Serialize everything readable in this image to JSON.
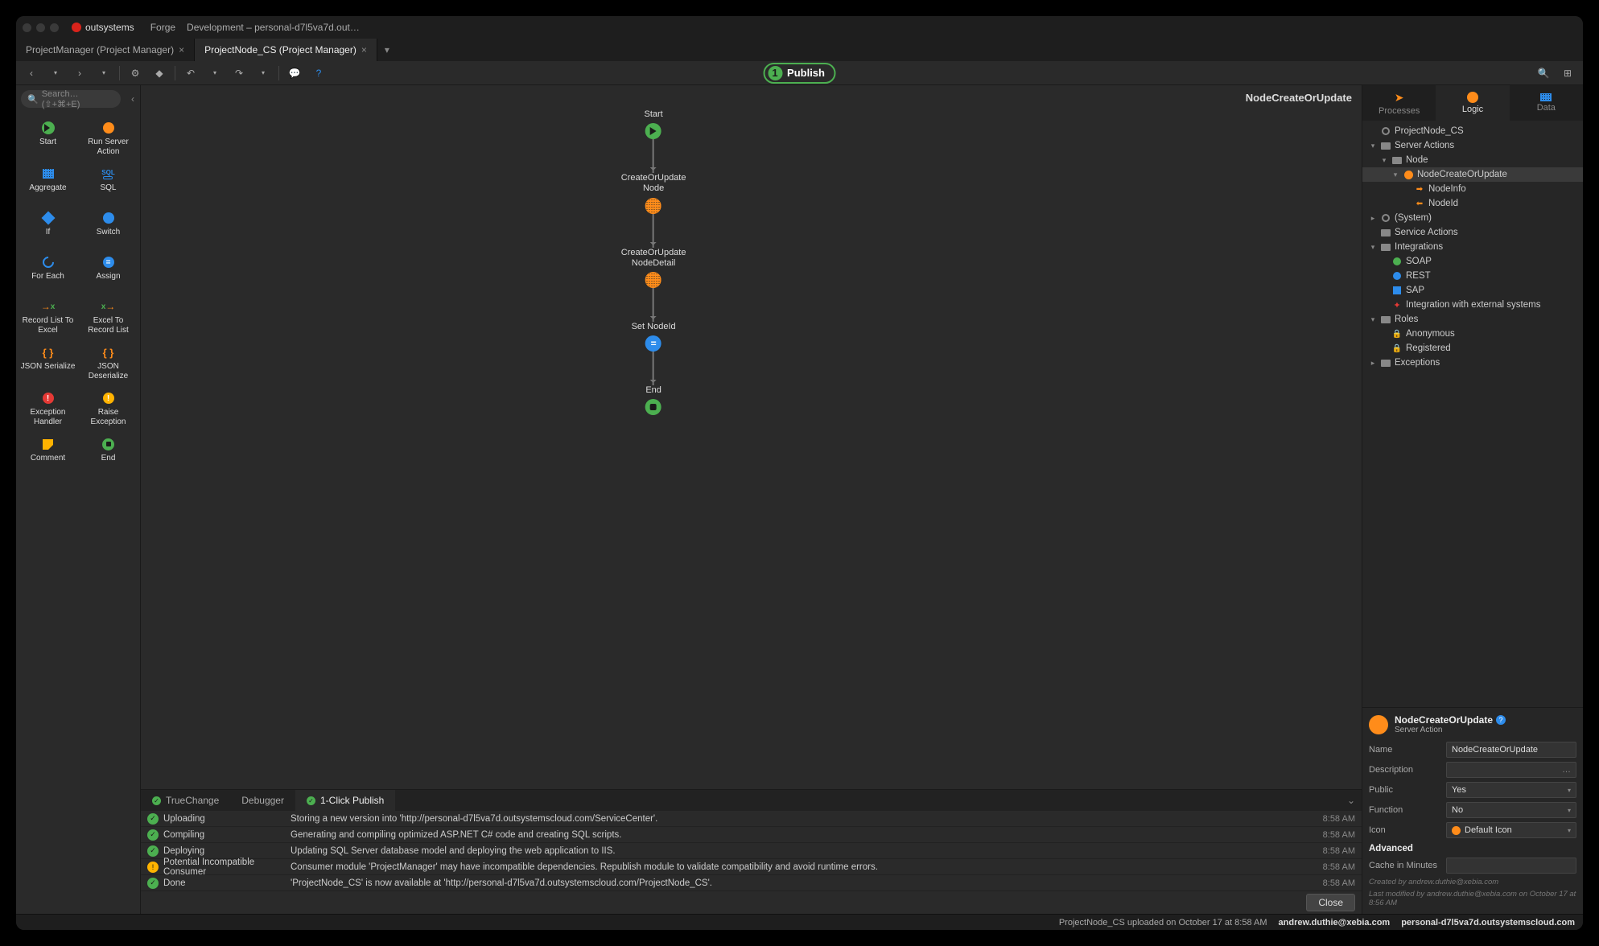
{
  "colors": {
    "bg": "#2a2a2a",
    "panel": "#262626",
    "orange": "#ff8c1a",
    "green": "#4caf50",
    "blue": "#2d8ceb",
    "red": "#e53935",
    "yellow": "#ffb300",
    "text": "#cccccc"
  },
  "brand": "outsystems",
  "topmenu": [
    "Forge",
    "Development – personal-d7l5va7d.out…"
  ],
  "doctabs": [
    {
      "label": "ProjectManager (Project Manager)",
      "active": false,
      "closable": true
    },
    {
      "label": "ProjectNode_CS (Project Manager)",
      "active": true,
      "closable": true
    }
  ],
  "publish": {
    "count": "1",
    "label": "Publish"
  },
  "search_placeholder": "Search… (⇧+⌘+E)",
  "palette": [
    {
      "label": "Start",
      "shape": "play",
      "color": "#4caf50"
    },
    {
      "label": "Run Server Action",
      "shape": "dot",
      "color": "#ff8c1a"
    },
    {
      "label": "Aggregate",
      "shape": "grid",
      "color": "#2d8ceb"
    },
    {
      "label": "SQL",
      "shape": "sql",
      "color": "#2d8ceb"
    },
    {
      "label": "If",
      "shape": "diamond",
      "color": "#2d8ceb"
    },
    {
      "label": "Switch",
      "shape": "dot",
      "color": "#2d8ceb"
    },
    {
      "label": "For Each",
      "shape": "loop",
      "color": "#2d8ceb"
    },
    {
      "label": "Assign",
      "shape": "equals",
      "color": "#2d8ceb"
    },
    {
      "label": "Record List To Excel",
      "shape": "xl-out",
      "color": "#4caf50"
    },
    {
      "label": "Excel To Record List",
      "shape": "xl-in",
      "color": "#4caf50"
    },
    {
      "label": "JSON Serialize",
      "shape": "json",
      "color": "#ff8c1a"
    },
    {
      "label": "JSON Deserialize",
      "shape": "json",
      "color": "#ff8c1a"
    },
    {
      "label": "Exception Handler",
      "shape": "warn",
      "color": "#e53935"
    },
    {
      "label": "Raise Exception",
      "shape": "warn",
      "color": "#ffb300"
    },
    {
      "label": "Comment",
      "shape": "note",
      "color": "#ffb300"
    },
    {
      "label": "End",
      "shape": "stop",
      "color": "#4caf50"
    }
  ],
  "canvas": {
    "title": "NodeCreateOrUpdate",
    "nodes": [
      {
        "label": "Start",
        "type": "start"
      },
      {
        "label": "CreateOrUpdate\nNode",
        "type": "aggregate"
      },
      {
        "label": "CreateOrUpdate\nNodeDetail",
        "type": "aggregate"
      },
      {
        "label": "Set NodeId",
        "type": "assign"
      },
      {
        "label": "End",
        "type": "end"
      }
    ]
  },
  "right_tabs": [
    {
      "label": "Processes",
      "color": "#ff8c1a",
      "active": false
    },
    {
      "label": "Logic",
      "color": "#ff8c1a",
      "active": true
    },
    {
      "label": "Data",
      "color": "#2d8ceb",
      "active": false
    }
  ],
  "tree": [
    {
      "d": 0,
      "caret": "",
      "icon": "module",
      "label": "ProjectNode_CS"
    },
    {
      "d": 0,
      "caret": "▾",
      "icon": "folder",
      "label": "Server Actions"
    },
    {
      "d": 1,
      "caret": "▾",
      "icon": "folder",
      "label": "Node"
    },
    {
      "d": 2,
      "caret": "▾",
      "icon": "action",
      "label": "NodeCreateOrUpdate",
      "sel": true
    },
    {
      "d": 3,
      "caret": "",
      "icon": "param-in",
      "label": "NodeInfo"
    },
    {
      "d": 3,
      "caret": "",
      "icon": "param-out",
      "label": "NodeId"
    },
    {
      "d": 0,
      "caret": "▸",
      "icon": "module",
      "label": "(System)"
    },
    {
      "d": 0,
      "caret": "",
      "icon": "folder",
      "label": "Service Actions"
    },
    {
      "d": 0,
      "caret": "▾",
      "icon": "folder",
      "label": "Integrations"
    },
    {
      "d": 1,
      "caret": "",
      "icon": "soap",
      "label": "SOAP"
    },
    {
      "d": 1,
      "caret": "",
      "icon": "rest",
      "label": "REST"
    },
    {
      "d": 1,
      "caret": "",
      "icon": "sap",
      "label": "SAP"
    },
    {
      "d": 1,
      "caret": "",
      "icon": "ext",
      "label": "Integration with external systems"
    },
    {
      "d": 0,
      "caret": "▾",
      "icon": "folder",
      "label": "Roles"
    },
    {
      "d": 1,
      "caret": "",
      "icon": "role",
      "label": "Anonymous"
    },
    {
      "d": 1,
      "caret": "",
      "icon": "role",
      "label": "Registered"
    },
    {
      "d": 0,
      "caret": "▸",
      "icon": "folder",
      "label": "Exceptions"
    }
  ],
  "props": {
    "title": "NodeCreateOrUpdate",
    "subtitle": "Server Action",
    "rows": [
      {
        "label": "Name",
        "value": "NodeCreateOrUpdate",
        "type": "text"
      },
      {
        "label": "Description",
        "value": "",
        "type": "text",
        "suffix": "…"
      },
      {
        "label": "Public",
        "value": "Yes",
        "type": "select"
      },
      {
        "label": "Function",
        "value": "No",
        "type": "select"
      },
      {
        "label": "Icon",
        "value": "Default Icon",
        "type": "icon"
      }
    ],
    "advanced_label": "Advanced",
    "cache_label": "Cache in Minutes",
    "cache_value": "",
    "created": "Created by andrew.duthie@xebia.com",
    "modified": "Last modified by andrew.duthie@xebia.com on October 17 at 8:56 AM"
  },
  "bottom_tabs": [
    {
      "label": "TrueChange",
      "status": "ok",
      "active": false
    },
    {
      "label": "Debugger",
      "status": "",
      "active": false
    },
    {
      "label": "1-Click Publish",
      "status": "ok",
      "active": true
    }
  ],
  "log": [
    {
      "status": "ok",
      "stage": "Uploading",
      "message": "Storing a new version into 'http://personal-d7l5va7d.outsystemscloud.com/ServiceCenter'.",
      "time": "8:58 AM"
    },
    {
      "status": "ok",
      "stage": "Compiling",
      "message": "Generating and compiling optimized ASP.NET C# code and creating SQL scripts.",
      "time": "8:58 AM"
    },
    {
      "status": "ok",
      "stage": "Deploying",
      "message": "Updating SQL Server database model and deploying the web application to IIS.",
      "time": "8:58 AM"
    },
    {
      "status": "warn",
      "stage": "Potential Incompatible Consumer",
      "message": "Consumer module 'ProjectManager' may have incompatible dependencies. Republish module to validate compatibility and avoid runtime errors.",
      "time": "8:58 AM"
    },
    {
      "status": "ok",
      "stage": "Done",
      "message": "'ProjectNode_CS' is now available at 'http://personal-d7l5va7d.outsystemscloud.com/ProjectNode_CS'.",
      "time": "8:58 AM"
    }
  ],
  "close_label": "Close",
  "statusbar": {
    "upload": "ProjectNode_CS uploaded on October 17 at 8:58 AM",
    "user": "andrew.duthie@xebia.com",
    "env": "personal-d7l5va7d.outsystemscloud.com"
  }
}
